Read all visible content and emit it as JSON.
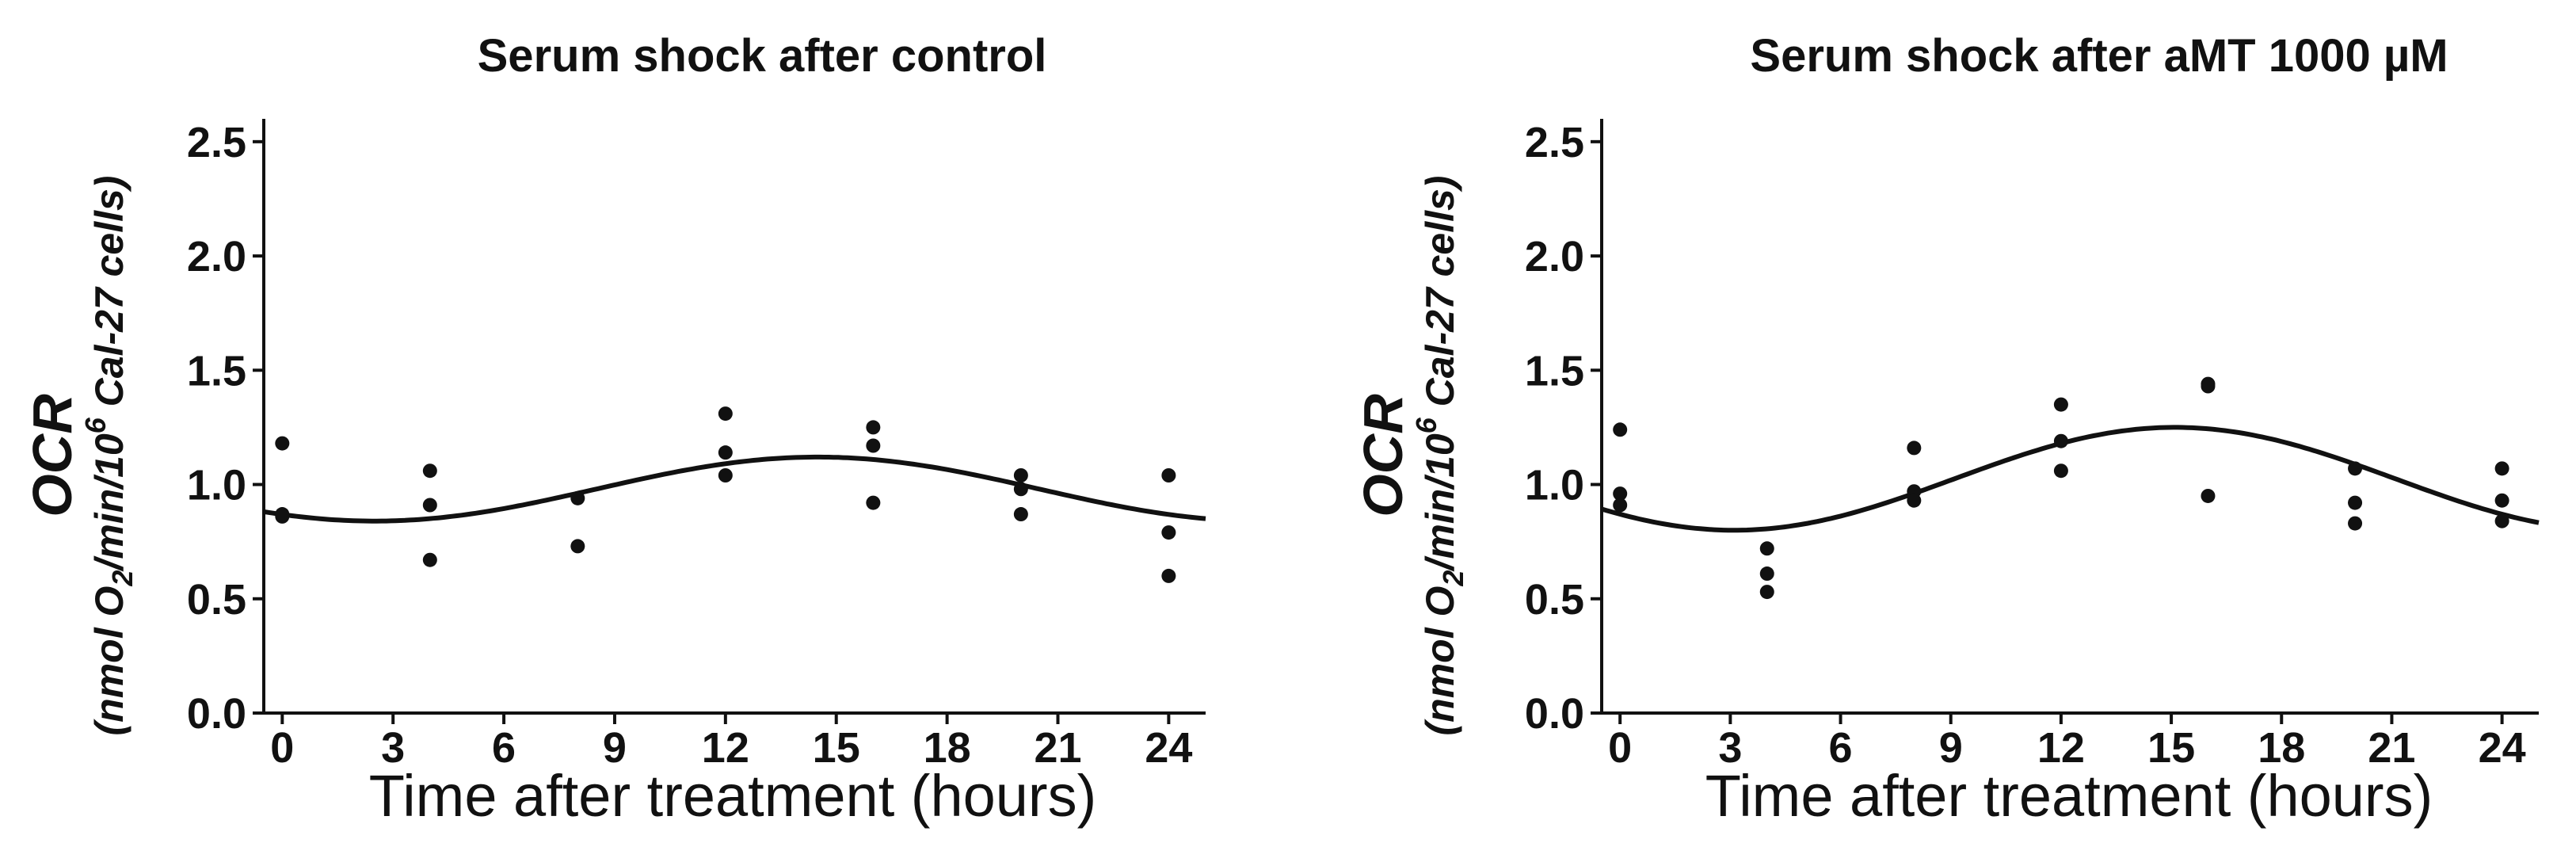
{
  "chart_data": [
    {
      "type": "scatter",
      "title": "Serum shock after control",
      "xlabel": "Time after treatment (hours)",
      "ylabel": {
        "main": "OCR",
        "unit_pre": "(nmol O",
        "unit_sub": "2",
        "unit_mid": "/min/10",
        "unit_sup": "6",
        "unit_post": " Cal-27 cells)"
      },
      "xlim": [
        -0.5,
        25
      ],
      "ylim": [
        0,
        2.6
      ],
      "xticks": [
        0,
        3,
        6,
        9,
        12,
        15,
        18,
        21,
        24
      ],
      "yticks": [
        0.0,
        0.5,
        1.0,
        1.5,
        2.0,
        2.5
      ],
      "ytick_labels": [
        "0.0",
        "0.5",
        "1.0",
        "1.5",
        "2.0",
        "2.5"
      ],
      "points": [
        {
          "x": 0,
          "y": 1.18
        },
        {
          "x": 0,
          "y": 0.87
        },
        {
          "x": 0,
          "y": 0.86
        },
        {
          "x": 4,
          "y": 1.06
        },
        {
          "x": 4,
          "y": 0.91
        },
        {
          "x": 4,
          "y": 0.67
        },
        {
          "x": 8,
          "y": 0.94
        },
        {
          "x": 8,
          "y": 0.73
        },
        {
          "x": 12,
          "y": 1.31
        },
        {
          "x": 12,
          "y": 1.14
        },
        {
          "x": 12,
          "y": 1.04
        },
        {
          "x": 16,
          "y": 1.25
        },
        {
          "x": 16,
          "y": 1.17
        },
        {
          "x": 16,
          "y": 0.92
        },
        {
          "x": 20,
          "y": 1.04
        },
        {
          "x": 20,
          "y": 0.98
        },
        {
          "x": 20,
          "y": 0.87
        },
        {
          "x": 24,
          "y": 1.04
        },
        {
          "x": 24,
          "y": 0.79
        },
        {
          "x": 24,
          "y": 0.6
        }
      ],
      "fit": {
        "model": "cosinor",
        "mesor": 0.98,
        "amplitude": 0.14,
        "peak_time": 14.5,
        "period": 24
      }
    },
    {
      "type": "scatter",
      "title": "Serum shock after aMT 1000 µM",
      "xlabel": "Time after treatment (hours)",
      "ylabel": {
        "main": "OCR",
        "unit_pre": "(nmol O",
        "unit_sub": "2",
        "unit_mid": "/min/10",
        "unit_sup": "6",
        "unit_post": " Cal-27 cells)"
      },
      "xlim": [
        -0.5,
        25
      ],
      "ylim": [
        0,
        2.6
      ],
      "xticks": [
        0,
        3,
        6,
        9,
        12,
        15,
        18,
        21,
        24
      ],
      "yticks": [
        0.0,
        0.5,
        1.0,
        1.5,
        2.0,
        2.5
      ],
      "ytick_labels": [
        "0.0",
        "0.5",
        "1.0",
        "1.5",
        "2.0",
        "2.5"
      ],
      "points": [
        {
          "x": 0,
          "y": 1.24
        },
        {
          "x": 0,
          "y": 0.96
        },
        {
          "x": 0,
          "y": 0.91
        },
        {
          "x": 4,
          "y": 0.72
        },
        {
          "x": 4,
          "y": 0.61
        },
        {
          "x": 4,
          "y": 0.53
        },
        {
          "x": 8,
          "y": 1.16
        },
        {
          "x": 8,
          "y": 0.97
        },
        {
          "x": 8,
          "y": 0.93
        },
        {
          "x": 12,
          "y": 1.35
        },
        {
          "x": 12,
          "y": 1.19
        },
        {
          "x": 12,
          "y": 1.06
        },
        {
          "x": 16,
          "y": 1.44
        },
        {
          "x": 16,
          "y": 1.43
        },
        {
          "x": 16,
          "y": 0.95
        },
        {
          "x": 20,
          "y": 1.07
        },
        {
          "x": 20,
          "y": 0.92
        },
        {
          "x": 20,
          "y": 0.83
        },
        {
          "x": 24,
          "y": 1.07
        },
        {
          "x": 24,
          "y": 0.93
        },
        {
          "x": 24,
          "y": 0.84
        }
      ],
      "fit": {
        "model": "cosinor",
        "mesor": 1.025,
        "amplitude": 0.225,
        "peak_time": 15.1,
        "period": 24
      }
    }
  ],
  "colors": {
    "ink": "#111111",
    "background": "#ffffff"
  }
}
